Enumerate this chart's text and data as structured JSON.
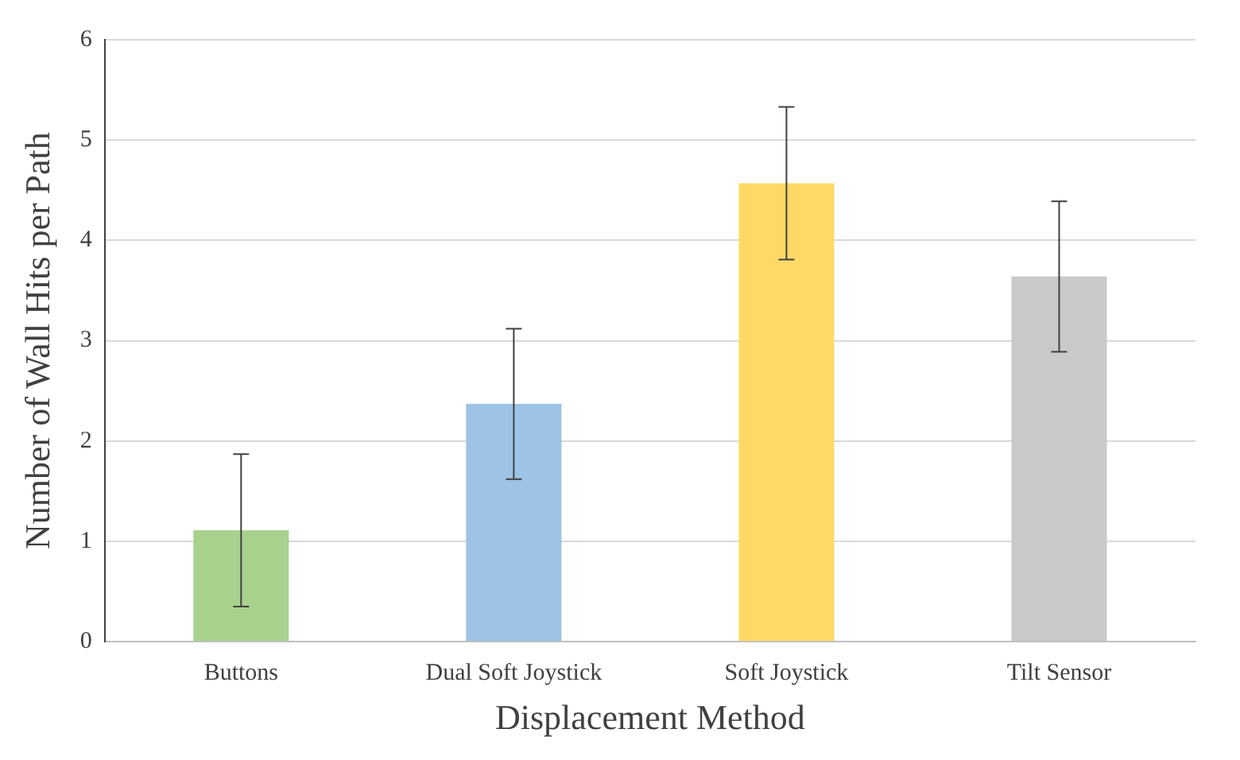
{
  "chart_data": {
    "type": "bar",
    "xlabel": "Displacement Method",
    "ylabel": "Number of Wall Hits per Path",
    "categories": [
      "Buttons",
      "Dual Soft Joystick",
      "Soft Joystick",
      "Tilt Sensor"
    ],
    "values": [
      1.11,
      2.37,
      4.57,
      3.64
    ],
    "colors": [
      "#a9d18e",
      "#9dc3e6",
      "#ffd966",
      "#c9c9c9"
    ],
    "errors": [
      0.76,
      0.75,
      0.76,
      0.75
    ],
    "ylim": [
      0,
      6
    ],
    "yticks": [
      0,
      1,
      2,
      3,
      4,
      5,
      6
    ],
    "grid": "y",
    "legend": false
  }
}
